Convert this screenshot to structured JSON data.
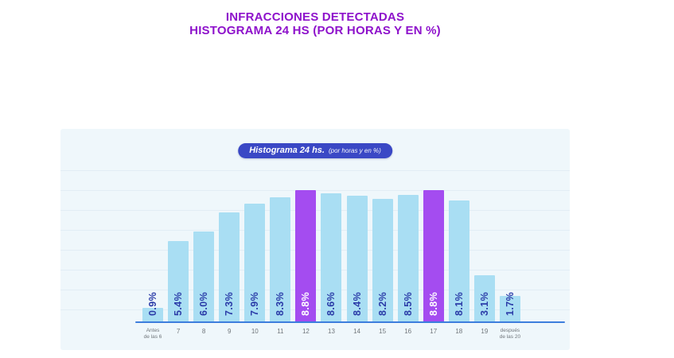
{
  "header": {
    "line1": "INFRACCIONES DETECTADAS",
    "line2": "HISTOGRAMA 24 HS (POR HORAS Y EN %)"
  },
  "colors": {
    "title_text": "#8e12cb",
    "badge_bg": "#3a48c5",
    "badge_text": "#ffffff",
    "panel_bg": "#eff7fb",
    "bar_default": "#a9def3",
    "bar_highlight": "#a44cf0",
    "value_label": "#2b3ca8",
    "value_label_on_highlight": "#ffffff",
    "axis_line": "#3d7edd",
    "tick_label": "#70767b",
    "gridline": "#e2edf5"
  },
  "chart_data": {
    "type": "bar",
    "badge_title": "Histograma 24 hs.",
    "badge_subtitle": "(por horas y en %)",
    "categories": [
      "Antes\nde las 6",
      "7",
      "8",
      "9",
      "10",
      "11",
      "12",
      "13",
      "14",
      "15",
      "16",
      "17",
      "18",
      "19",
      "después\nde las 20"
    ],
    "values": [
      0.9,
      5.4,
      6.0,
      7.3,
      7.9,
      8.3,
      8.8,
      8.6,
      8.4,
      8.2,
      8.5,
      8.8,
      8.1,
      3.1,
      1.7
    ],
    "value_labels": [
      "0.9%",
      "5.4%",
      "6.0%",
      "7.3%",
      "7.9%",
      "8.3%",
      "8.8%",
      "8.6%",
      "8.4%",
      "8.2%",
      "8.5%",
      "8.8%",
      "8.1%",
      "3.1%",
      "1.7%"
    ],
    "highlighted_indices": [
      6,
      11
    ],
    "ylim": [
      0,
      10
    ],
    "grid": true,
    "legend_position": "none",
    "unit": "%"
  }
}
